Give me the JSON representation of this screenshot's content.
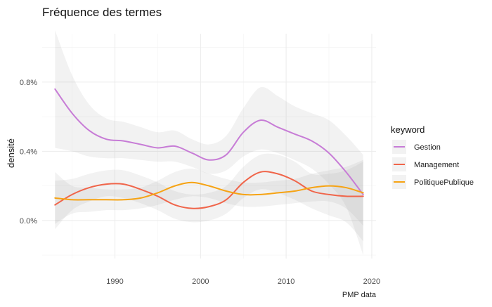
{
  "chart_data": {
    "type": "line",
    "title": "Fréquence des termes",
    "xlabel": "",
    "ylabel": "densité",
    "caption": "PMP data",
    "xlim": [
      1981.5,
      2020.5
    ],
    "ylim": [
      -0.0022,
      0.0108
    ],
    "x_ticks": [
      1990,
      2000,
      2010,
      2020
    ],
    "y_ticks": [
      {
        "value": 0.0,
        "label": "0.0%"
      },
      {
        "value": 0.004,
        "label": "0.4%"
      },
      {
        "value": 0.008,
        "label": "0.8%"
      }
    ],
    "grid": true,
    "legend_position": "right",
    "legend_title": "keyword",
    "x": [
      1983,
      1985,
      1987,
      1989,
      1991,
      1993,
      1995,
      1997,
      1999,
      2001,
      2003,
      2005,
      2007,
      2009,
      2011,
      2013,
      2015,
      2017,
      2019
    ],
    "series": [
      {
        "name": "Gestion",
        "color": "#c77cd6",
        "values": [
          0.0076,
          0.0062,
          0.0052,
          0.0047,
          0.0046,
          0.0044,
          0.0042,
          0.0043,
          0.0039,
          0.0035,
          0.0038,
          0.0051,
          0.0058,
          0.0054,
          0.005,
          0.0046,
          0.0039,
          0.0028,
          0.0015
        ],
        "ci_lower": [
          0.0042,
          0.004,
          0.0037,
          0.0036,
          0.0036,
          0.0035,
          0.0034,
          0.0034,
          0.0031,
          0.0027,
          0.0029,
          0.0037,
          0.0041,
          0.0039,
          0.0035,
          0.003,
          0.0021,
          0.0008,
          -0.002
        ],
        "ci_upper": [
          0.011,
          0.0084,
          0.0067,
          0.0059,
          0.0057,
          0.0054,
          0.0051,
          0.0052,
          0.0047,
          0.0044,
          0.0049,
          0.0065,
          0.0077,
          0.0072,
          0.0066,
          0.0062,
          0.0058,
          0.0049,
          0.0038
        ]
      },
      {
        "name": "Management",
        "color": "#f0654a",
        "values": [
          0.0009,
          0.0015,
          0.0019,
          0.0021,
          0.0021,
          0.0018,
          0.0014,
          0.0009,
          0.0007,
          0.0008,
          0.0012,
          0.0022,
          0.0028,
          0.0027,
          0.0023,
          0.0017,
          0.0015,
          0.0014,
          0.0014
        ],
        "ci_lower": [
          -0.0005,
          0.0006,
          0.0011,
          0.0014,
          0.0013,
          0.001,
          0.0006,
          0.0001,
          -0.0001,
          0.0,
          0.0004,
          0.0013,
          0.0018,
          0.0016,
          0.0012,
          0.0007,
          0.0003,
          -0.0001,
          -0.0012
        ],
        "ci_upper": [
          0.0023,
          0.0024,
          0.0027,
          0.0029,
          0.0029,
          0.0026,
          0.0022,
          0.0017,
          0.0015,
          0.0016,
          0.002,
          0.0031,
          0.0038,
          0.0038,
          0.0034,
          0.0027,
          0.0027,
          0.0029,
          0.0034
        ]
      },
      {
        "name": "PolitiquePublique",
        "color": "#f6a313",
        "values": [
          0.0013,
          0.0012,
          0.0012,
          0.0012,
          0.0012,
          0.0013,
          0.0016,
          0.002,
          0.0022,
          0.002,
          0.0017,
          0.0015,
          0.0015,
          0.0016,
          0.0017,
          0.0019,
          0.002,
          0.0019,
          0.0016
        ],
        "ci_lower": [
          -0.0002,
          0.0004,
          0.0005,
          0.0006,
          0.0006,
          0.0007,
          0.0009,
          0.0012,
          0.0014,
          0.0013,
          0.001,
          0.0008,
          0.0008,
          0.0009,
          0.001,
          0.0011,
          0.0011,
          0.0007,
          -0.0003
        ],
        "ci_upper": [
          0.0028,
          0.002,
          0.0019,
          0.0018,
          0.0018,
          0.0019,
          0.0023,
          0.0028,
          0.003,
          0.0027,
          0.0024,
          0.0022,
          0.0022,
          0.0023,
          0.0024,
          0.0027,
          0.0029,
          0.0031,
          0.0035
        ]
      }
    ]
  }
}
